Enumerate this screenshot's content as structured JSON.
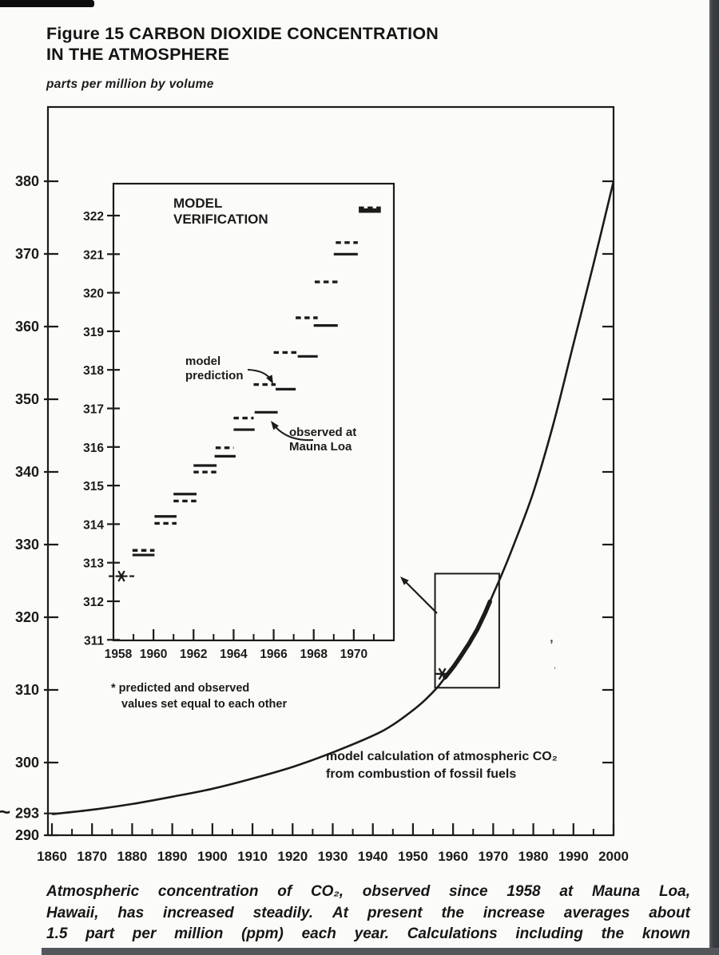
{
  "page": {
    "title_line1": "Figure 15 CARBON DIOXIDE CONCENTRATION",
    "title_line2": "IN THE ATMOSPHERE",
    "units_label": "parts per million by volume",
    "caption_lines": [
      "Atmospheric concentration of CO₂, observed since 1958 at Mauna Loa,",
      "Hawaii, has increased steadily. At present the increase averages about",
      "1.5 part per million (ppm) each year. Calculations including the known"
    ]
  },
  "colors": {
    "ink": "#1b1b1b",
    "page_bg": "#fbfbf9",
    "right_band": "#3a3d42",
    "bottom_band": "#53565b",
    "top_bar": "#0e0e0e"
  },
  "scan_artifacts": {
    "speck1": "ʼ",
    "speck2": "ˌ"
  },
  "chart_data": [
    {
      "type": "line",
      "title": "Figure 15 CARBON DIOXIDE CONCENTRATION IN THE ATMOSPHERE",
      "ylabel": "parts per million by volume",
      "xlim": [
        1860,
        2000
      ],
      "ylim": [
        290,
        390
      ],
      "grid": false,
      "x_ticks": [
        1860,
        1870,
        1880,
        1890,
        1900,
        1910,
        1920,
        1930,
        1940,
        1950,
        1960,
        1970,
        1980,
        1990,
        2000
      ],
      "x_minor_interval": 5,
      "y_ticks": [
        290,
        293,
        300,
        310,
        320,
        330,
        340,
        350,
        360,
        370,
        380
      ],
      "y_axis_break_symbol": "~",
      "series": [
        {
          "name": "model calculation of atmospheric CO₂ from combustion of fossil fuels",
          "style": "solid",
          "x": [
            1860,
            1870,
            1880,
            1890,
            1900,
            1910,
            1920,
            1930,
            1940,
            1945,
            1950,
            1953,
            1956,
            1958,
            1960,
            1962,
            1964,
            1966,
            1968,
            1970,
            1972,
            1975,
            1980,
            1985,
            1990,
            1995,
            2000
          ],
          "y": [
            292.9,
            293.5,
            294.3,
            295.3,
            296.4,
            297.8,
            299.4,
            301.4,
            303.7,
            305.2,
            307.2,
            308.6,
            310.3,
            311.7,
            313.1,
            314.7,
            316.4,
            318.3,
            320.6,
            323.2,
            325.7,
            329.8,
            337.2,
            346.6,
            357.6,
            368.6,
            380.0
          ]
        }
      ],
      "observed_overlay": {
        "name": "observed record (thick segment)",
        "x_start": 1958,
        "x_end": 1969.4
      },
      "star_marker": {
        "x": 1957.3,
        "y": 312.2
      },
      "zoom_box": {
        "x1": 1955.5,
        "x2": 1971.5,
        "y1": 310.3,
        "y2": 326.0
      },
      "annotation_lines": [
        "model calculation of atmospheric CO₂",
        "from combustion of fossil fuels"
      ]
    },
    {
      "type": "step-segments",
      "title_line1": "MODEL",
      "title_line2": "VERIFICATION",
      "xlim": [
        1958,
        1972
      ],
      "ylim": [
        311,
        322.85
      ],
      "x_ticks": [
        1958,
        1960,
        1962,
        1964,
        1966,
        1968,
        1970
      ],
      "x_minor_ticks": [
        1959,
        1961,
        1963,
        1965,
        1967,
        1969,
        1971
      ],
      "y_ticks": [
        311,
        312,
        313,
        314,
        315,
        316,
        317,
        318,
        319,
        320,
        321,
        322
      ],
      "star_marker": {
        "x": 1958.4,
        "y": 312.65
      },
      "series": [
        {
          "name": "model prediction",
          "style": "dashed",
          "segments": [
            [
              1958.95,
              1960.05,
              313.32
            ],
            [
              1960.05,
              1961.15,
              314.02
            ],
            [
              1961.0,
              1962.15,
              314.6
            ],
            [
              1962.0,
              1963.15,
              315.35
            ],
            [
              1963.1,
              1964.0,
              315.98
            ],
            [
              1964.0,
              1965.0,
              316.75
            ],
            [
              1965.0,
              1966.1,
              317.62
            ],
            [
              1966.0,
              1967.15,
              318.45
            ],
            [
              1967.1,
              1968.2,
              319.35
            ],
            [
              1968.05,
              1969.2,
              320.28
            ],
            [
              1969.1,
              1970.2,
              321.3
            ],
            [
              1970.25,
              1971.35,
              322.2
            ]
          ]
        },
        {
          "name": "observed at Mauna Loa",
          "style": "solid",
          "segments": [
            [
              1958.95,
              1960.05,
              313.2
            ],
            [
              1960.05,
              1961.15,
              314.2
            ],
            [
              1961.0,
              1962.15,
              314.78
            ],
            [
              1962.0,
              1963.15,
              315.52
            ],
            [
              1963.05,
              1964.1,
              315.76
            ],
            [
              1964.0,
              1965.05,
              316.45
            ],
            [
              1965.05,
              1966.2,
              316.9
            ],
            [
              1966.1,
              1967.1,
              317.5
            ],
            [
              1967.2,
              1968.2,
              318.35
            ],
            [
              1968.0,
              1969.2,
              319.15
            ],
            [
              1969.0,
              1970.2,
              321.0
            ],
            [
              1970.25,
              1971.35,
              322.13
            ]
          ]
        }
      ],
      "callout_prediction_line1": "model",
      "callout_prediction_line2": "prediction",
      "callout_observed_line1": "observed at",
      "callout_observed_line2": "Mauna Loa",
      "footnote_line1": "* predicted and observed",
      "footnote_line2": "values set equal to each other"
    }
  ]
}
